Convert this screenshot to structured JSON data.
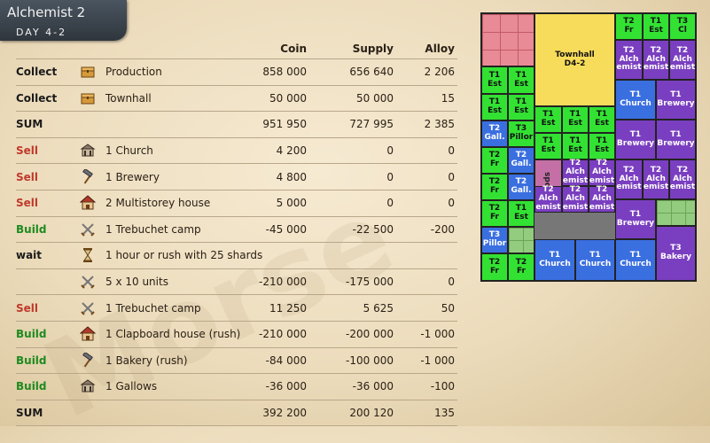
{
  "header": {
    "title": "Alchemist 2",
    "subtitle": "DAY 4-2"
  },
  "columns": {
    "coin": "Coin",
    "supply": "Supply",
    "alloy": "Alloy"
  },
  "rows": [
    {
      "action": "Collect",
      "kind": "black",
      "icon": "chest-icon",
      "desc": "Production",
      "coin": "858 000",
      "supply": "656 640",
      "alloy": "2 206"
    },
    {
      "action": "Collect",
      "kind": "black",
      "icon": "chest-icon",
      "desc": "Townhall",
      "coin": "50 000",
      "supply": "50 000",
      "alloy": "15"
    },
    {
      "action": "SUM",
      "kind": "black",
      "icon": "",
      "desc": "",
      "coin": "951 950",
      "supply": "727 995",
      "alloy": "2 385"
    },
    {
      "action": "Sell",
      "kind": "sell",
      "icon": "church-icon",
      "desc": "1 Church",
      "coin": "4 200",
      "supply": "0",
      "alloy": "0"
    },
    {
      "action": "Sell",
      "kind": "sell",
      "icon": "hammer-icon",
      "desc": "1 Brewery",
      "coin": "4 800",
      "supply": "0",
      "alloy": "0"
    },
    {
      "action": "Sell",
      "kind": "sell",
      "icon": "house-icon",
      "desc": "2 Multistorey house",
      "coin": "5 000",
      "supply": "0",
      "alloy": "0"
    },
    {
      "action": "Build",
      "kind": "build",
      "icon": "swords-icon",
      "desc": "1 Trebuchet camp",
      "coin": "-45 000",
      "supply": "-22 500",
      "alloy": "-200"
    },
    {
      "action": "wait",
      "kind": "black",
      "icon": "hourglass-icon",
      "desc": "1 hour or rush with 25 shards",
      "coin": "",
      "supply": "",
      "alloy": ""
    },
    {
      "action": "",
      "kind": "black",
      "icon": "swords-icon",
      "desc": "5 x 10 units",
      "coin": "-210 000",
      "supply": "-175 000",
      "alloy": "0"
    },
    {
      "action": "Sell",
      "kind": "sell",
      "icon": "swords-icon",
      "desc": "1 Trebuchet camp",
      "coin": "11 250",
      "supply": "5 625",
      "alloy": "50"
    },
    {
      "action": "Build",
      "kind": "build",
      "icon": "house-icon",
      "desc": "1 Clapboard house (rush)",
      "coin": "-210 000",
      "supply": "-200 000",
      "alloy": "-1 000"
    },
    {
      "action": "Build",
      "kind": "build",
      "icon": "hammer-icon",
      "desc": "1 Bakery (rush)",
      "coin": "-84 000",
      "supply": "-100 000",
      "alloy": "-1 000"
    },
    {
      "action": "Build",
      "kind": "build",
      "icon": "church-icon",
      "desc": "1 Gallows",
      "coin": "-36 000",
      "supply": "-36 000",
      "alloy": "-100"
    },
    {
      "action": "SUM",
      "kind": "black",
      "icon": "",
      "desc": "",
      "coin": "392 200",
      "supply": "200 120",
      "alloy": "135"
    }
  ],
  "map": {
    "blocks": [
      {
        "l1": "",
        "l2": "",
        "c": "pinkgrid"
      },
      {
        "l1": "Townhall",
        "l2": "D4-2",
        "c": "y"
      },
      {
        "l1": "T2",
        "l2": "Fr",
        "c": "g"
      },
      {
        "l1": "T1",
        "l2": "Est",
        "c": "g"
      },
      {
        "l1": "T3",
        "l2": "Cl",
        "c": "g"
      },
      {
        "l1": "T2",
        "l2": "Alch emist",
        "c": "p"
      },
      {
        "l1": "T2",
        "l2": "Alch emist",
        "c": "p"
      },
      {
        "l1": "T2",
        "l2": "Alch emist",
        "c": "p"
      },
      {
        "l1": "T1",
        "l2": "Est",
        "c": "g"
      },
      {
        "l1": "T1",
        "l2": "Est",
        "c": "g"
      },
      {
        "l1": "T1",
        "l2": "Church",
        "c": "b"
      },
      {
        "l1": "T1",
        "l2": "Brewery",
        "c": "p"
      },
      {
        "l1": "T1",
        "l2": "Est",
        "c": "g"
      },
      {
        "l1": "T1",
        "l2": "Est",
        "c": "g"
      },
      {
        "l1": "T1",
        "l2": "Est",
        "c": "g"
      },
      {
        "l1": "T1",
        "l2": "Est",
        "c": "g"
      },
      {
        "l1": "T1",
        "l2": "Est",
        "c": "g"
      },
      {
        "l1": "T2",
        "l2": "Gall.",
        "c": "b"
      },
      {
        "l1": "T3",
        "l2": "Pillor",
        "c": "g"
      },
      {
        "l1": "T1",
        "l2": "Est",
        "c": "g"
      },
      {
        "l1": "T1",
        "l2": "Est",
        "c": "g"
      },
      {
        "l1": "T1",
        "l2": "Est",
        "c": "g"
      },
      {
        "l1": "T1",
        "l2": "Brewery",
        "c": "p"
      },
      {
        "l1": "T1",
        "l2": "Brewery",
        "c": "p"
      },
      {
        "l1": "T2",
        "l2": "Fr",
        "c": "g"
      },
      {
        "l1": "T2",
        "l2": "Gall.",
        "c": "b"
      },
      {
        "l1": "Goods",
        "l2": "",
        "c": "gp"
      },
      {
        "l1": "T2",
        "l2": "Alch emist",
        "c": "p"
      },
      {
        "l1": "T2",
        "l2": "Alch emist",
        "c": "p"
      },
      {
        "l1": "T2",
        "l2": "Alch emist",
        "c": "p"
      },
      {
        "l1": "T2",
        "l2": "Alch emist",
        "c": "p"
      },
      {
        "l1": "T2",
        "l2": "Alch emist",
        "c": "p"
      },
      {
        "l1": "T2",
        "l2": "Fr",
        "c": "g"
      },
      {
        "l1": "T2",
        "l2": "Gall.",
        "c": "b"
      },
      {
        "l1": "T2",
        "l2": "Fr",
        "c": "g"
      },
      {
        "l1": "T1",
        "l2": "Est",
        "c": "g"
      },
      {
        "l1": "T2",
        "l2": "Alch emist",
        "c": "p"
      },
      {
        "l1": "T2",
        "l2": "Alch emist",
        "c": "p"
      },
      {
        "l1": "T2",
        "l2": "Alch emist",
        "c": "p"
      },
      {
        "l1": "T1",
        "l2": "Brewery",
        "c": "p"
      },
      {
        "l1": "",
        "l2": "",
        "c": "greengrid"
      },
      {
        "l1": "T3",
        "l2": "Pillor",
        "c": "b"
      },
      {
        "l1": "",
        "l2": "",
        "c": "greengrid"
      },
      {
        "l1": "T3",
        "l2": "Bakery",
        "c": "p"
      },
      {
        "l1": "T2",
        "l2": "Fr",
        "c": "g"
      },
      {
        "l1": "T2",
        "l2": "Fr",
        "c": "g"
      },
      {
        "l1": "T1",
        "l2": "Church",
        "c": "b"
      },
      {
        "l1": "T1",
        "l2": "Church",
        "c": "b"
      },
      {
        "l1": "T1",
        "l2": "Church",
        "c": "b"
      }
    ]
  }
}
